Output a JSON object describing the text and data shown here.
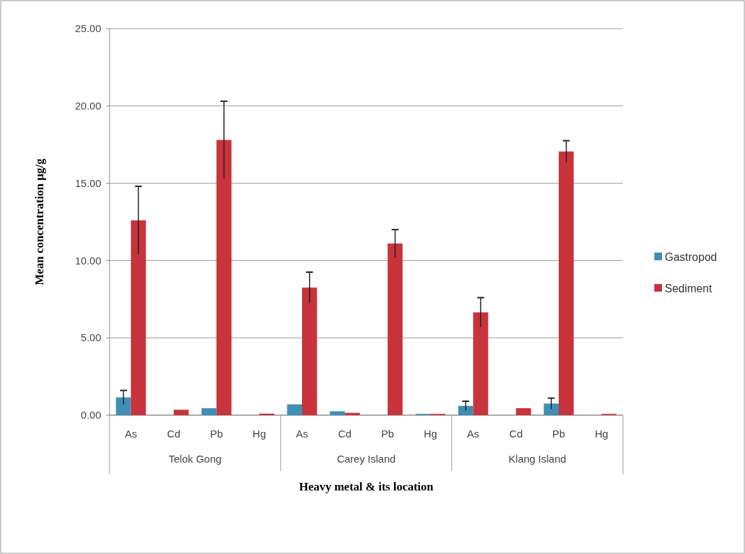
{
  "chart_data": {
    "type": "bar",
    "xlabel": "Heavy metal & its location",
    "ylabel": "Mean concentration  µg/g",
    "categories": [
      "As",
      "Cd",
      "Pb",
      "Hg",
      "As",
      "Cd",
      "Pb",
      "Hg",
      "As",
      "Cd",
      "Pb",
      "Hg"
    ],
    "annotations": [
      "Telok Gong",
      "Carey Island",
      "Klang Island"
    ],
    "series": [
      {
        "name": "Gastropod",
        "color": "#3f8fb5",
        "values": [
          1.15,
          0,
          0.45,
          0,
          0.7,
          0.25,
          0,
          0.08,
          0.6,
          0,
          0.75,
          0
        ],
        "errors": [
          0.45,
          null,
          null,
          null,
          null,
          null,
          null,
          null,
          0.3,
          null,
          0.35,
          null
        ]
      },
      {
        "name": "Sediment",
        "color": "#c8333c",
        "values": [
          12.6,
          0.35,
          17.8,
          0.1,
          8.25,
          0.15,
          11.1,
          0.08,
          6.65,
          0.45,
          17.05,
          0.08
        ],
        "errors": [
          2.2,
          null,
          2.5,
          null,
          1.0,
          null,
          0.9,
          null,
          0.95,
          null,
          0.7,
          null
        ]
      }
    ],
    "ylim": [
      0,
      25
    ],
    "yticks": [
      {
        "value": 0,
        "label": "0.00"
      },
      {
        "value": 5,
        "label": "5.00"
      },
      {
        "value": 10,
        "label": "10.00"
      },
      {
        "value": 15,
        "label": "15.00"
      },
      {
        "value": 20,
        "label": "20.00"
      },
      {
        "value": 25,
        "label": "25.00"
      }
    ],
    "grid": "y",
    "legend": "right"
  }
}
